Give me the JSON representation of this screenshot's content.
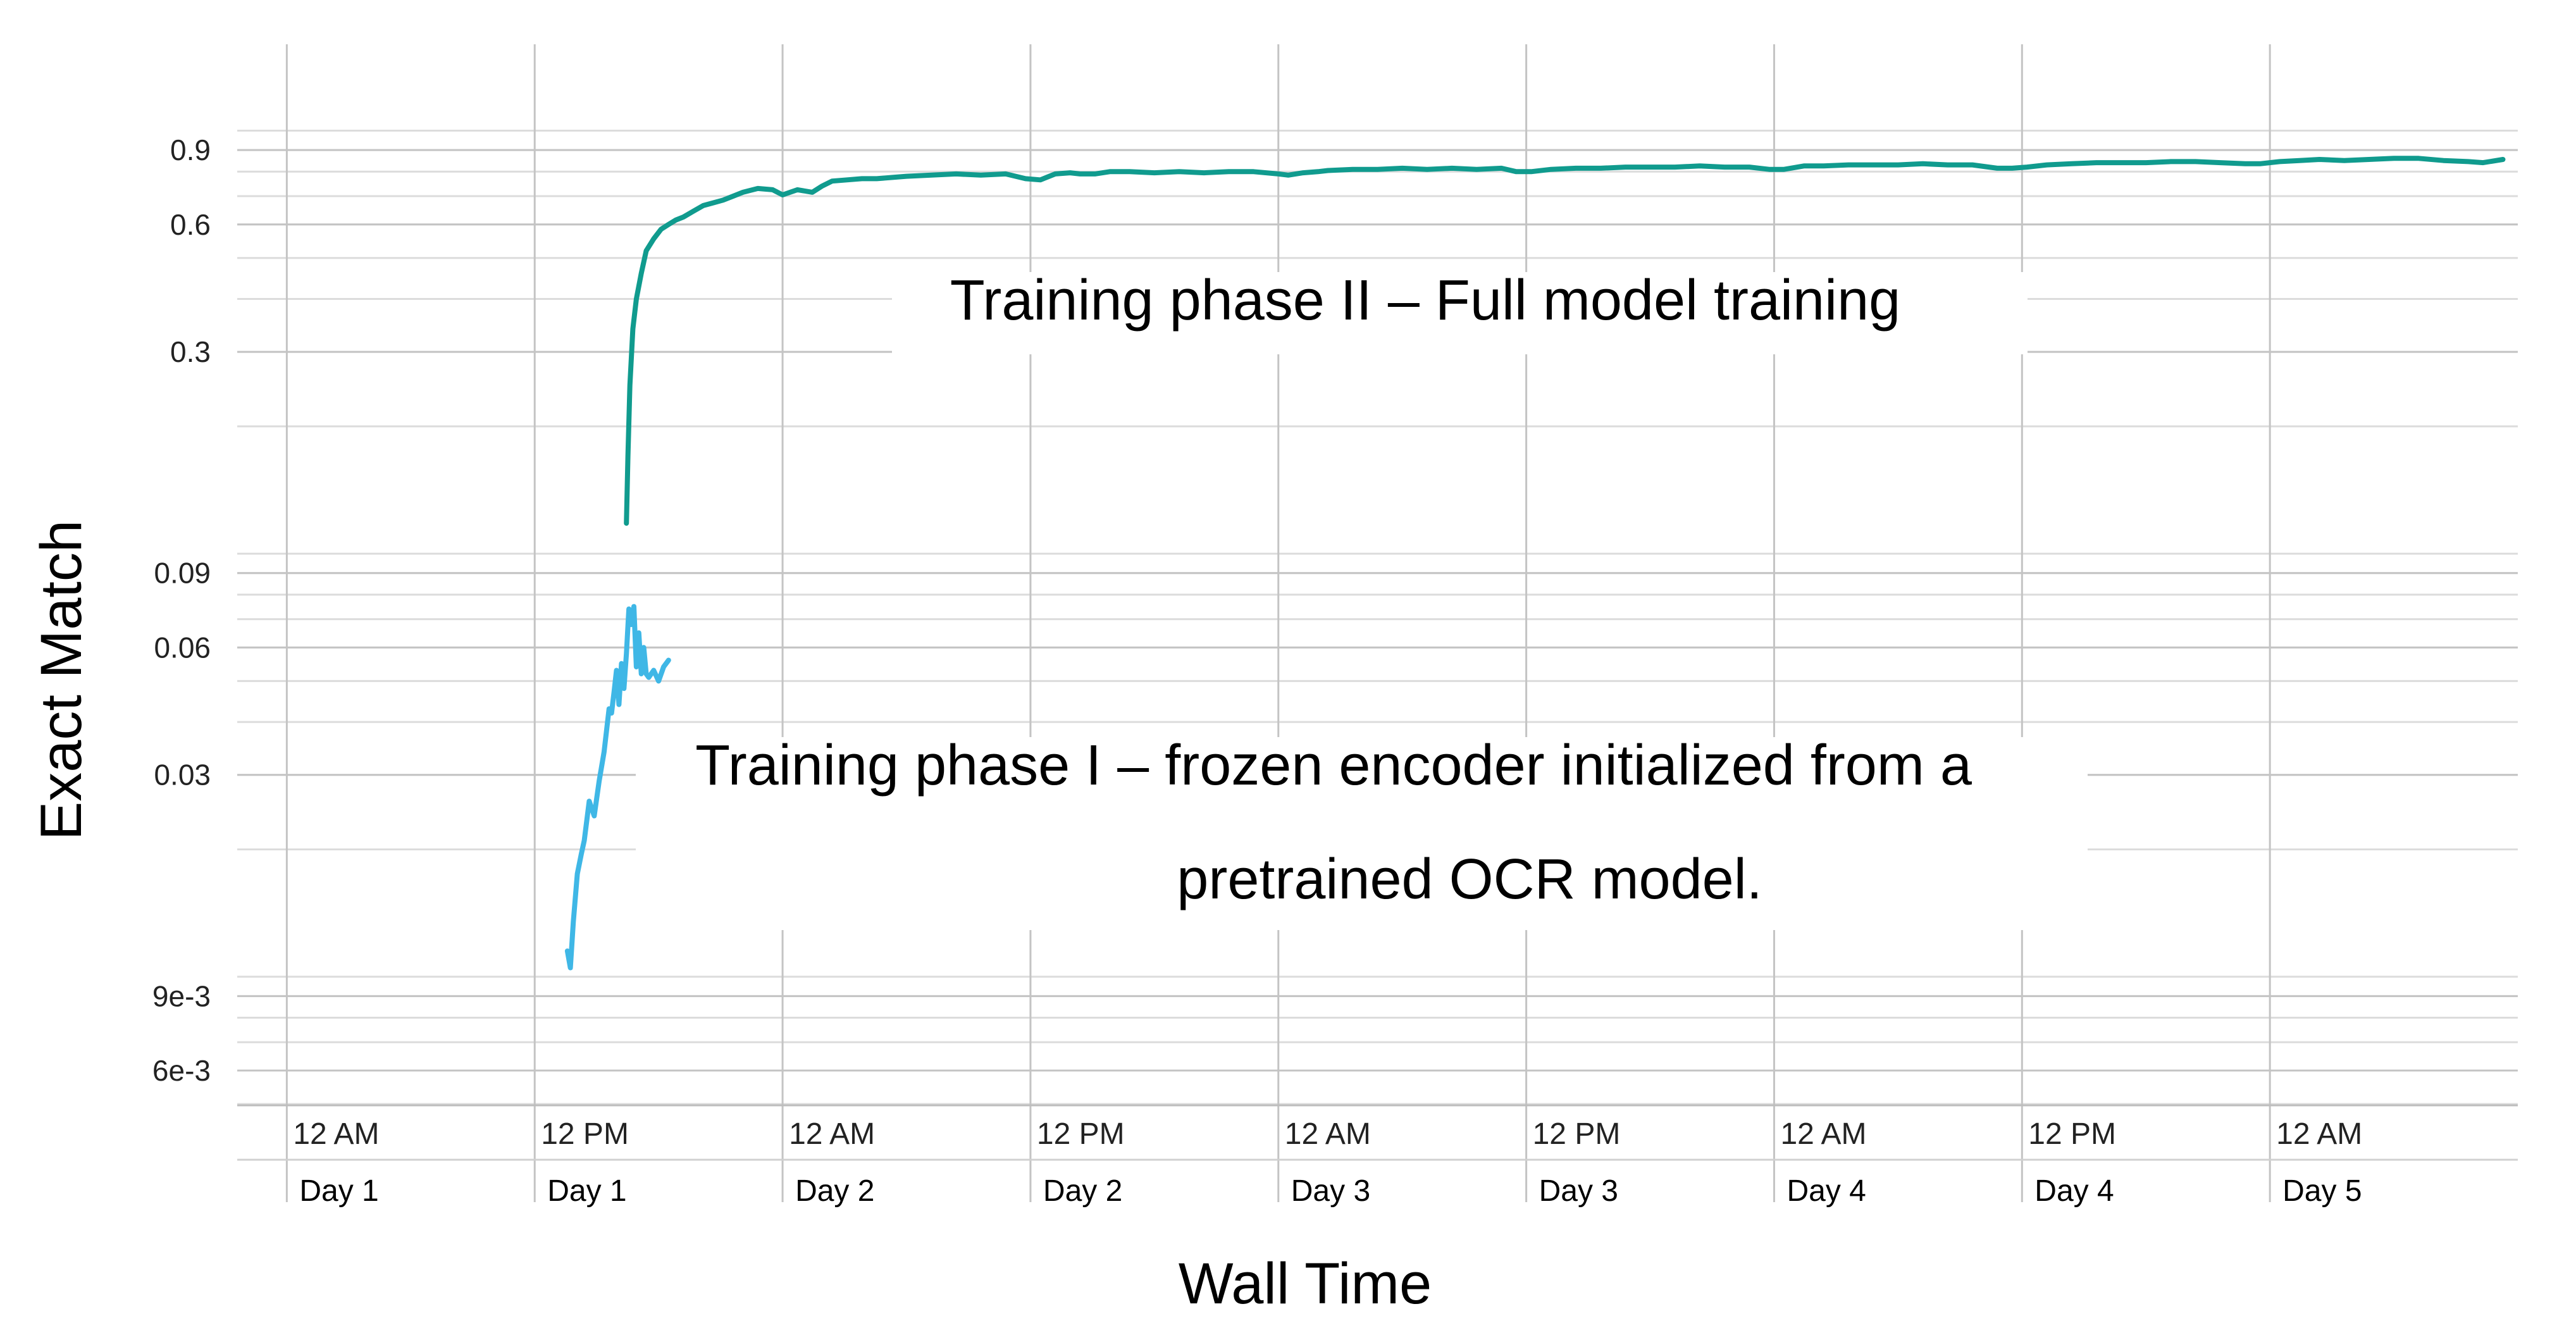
{
  "chart_data": {
    "type": "line",
    "title": "",
    "xlabel": "Wall Time",
    "ylabel": "Exact Match",
    "yscale": "log",
    "ylim": [
      0.005,
      1.6
    ],
    "xlim": [
      -0.1,
      4.5
    ],
    "grid": true,
    "y_ticks": [
      {
        "value": 0.006,
        "label": "6e-3"
      },
      {
        "value": 0.009,
        "label": "9e-3"
      },
      {
        "value": 0.03,
        "label": "0.03"
      },
      {
        "value": 0.06,
        "label": "0.06"
      },
      {
        "value": 0.09,
        "label": "0.09"
      },
      {
        "value": 0.3,
        "label": "0.3"
      },
      {
        "value": 0.6,
        "label": "0.6"
      },
      {
        "value": 0.9,
        "label": "0.9"
      }
    ],
    "x_ticks": [
      {
        "value": 0.0,
        "time": "12 AM",
        "day": "Day 1"
      },
      {
        "value": 0.5,
        "time": "12 PM",
        "day": "Day 1"
      },
      {
        "value": 1.0,
        "time": "12 AM",
        "day": "Day 2"
      },
      {
        "value": 1.5,
        "time": "12 PM",
        "day": "Day 2"
      },
      {
        "value": 2.0,
        "time": "12 AM",
        "day": "Day 3"
      },
      {
        "value": 2.5,
        "time": "12 PM",
        "day": "Day 3"
      },
      {
        "value": 3.0,
        "time": "12 AM",
        "day": "Day 4"
      },
      {
        "value": 3.5,
        "time": "12 PM",
        "day": "Day 4"
      },
      {
        "value": 4.0,
        "time": "12 AM",
        "day": "Day 5"
      }
    ],
    "annotations": [
      {
        "text": "Training phase II – Full model training",
        "series": "phase2"
      },
      {
        "text": "Training phase I – frozen encoder initialized from a",
        "series": "phase1"
      },
      {
        "text": "pretrained OCR model.",
        "series": "phase1"
      }
    ],
    "series": [
      {
        "name": "Training phase I",
        "color": "#3fb7e6",
        "x": [
          0.566,
          0.572,
          0.578,
          0.586,
          0.594,
          0.6,
          0.61,
          0.62,
          0.63,
          0.64,
          0.65,
          0.655,
          0.66,
          0.665,
          0.67,
          0.675,
          0.68,
          0.685,
          0.69,
          0.695,
          0.7,
          0.705,
          0.71,
          0.715,
          0.72,
          0.725,
          0.73,
          0.74,
          0.75,
          0.76,
          0.77
        ],
        "y": [
          0.0115,
          0.0105,
          0.0135,
          0.0175,
          0.0195,
          0.021,
          0.026,
          0.024,
          0.029,
          0.034,
          0.043,
          0.042,
          0.047,
          0.053,
          0.044,
          0.055,
          0.048,
          0.058,
          0.074,
          0.068,
          0.075,
          0.054,
          0.065,
          0.052,
          0.06,
          0.052,
          0.051,
          0.053,
          0.05,
          0.054,
          0.056
        ]
      },
      {
        "name": "Training phase II",
        "color": "#109b8e",
        "x": [
          0.685,
          0.688,
          0.692,
          0.698,
          0.705,
          0.715,
          0.725,
          0.74,
          0.755,
          0.77,
          0.785,
          0.8,
          0.82,
          0.84,
          0.86,
          0.88,
          0.9,
          0.92,
          0.95,
          0.98,
          1.0,
          1.03,
          1.06,
          1.08,
          1.1,
          1.13,
          1.16,
          1.19,
          1.22,
          1.25,
          1.3,
          1.35,
          1.4,
          1.45,
          1.49,
          1.52,
          1.55,
          1.58,
          1.6,
          1.63,
          1.66,
          1.7,
          1.75,
          1.8,
          1.85,
          1.9,
          1.95,
          2.0,
          2.02,
          2.05,
          2.08,
          2.1,
          2.15,
          2.2,
          2.25,
          2.3,
          2.35,
          2.4,
          2.45,
          2.48,
          2.51,
          2.55,
          2.6,
          2.65,
          2.7,
          2.75,
          2.8,
          2.85,
          2.9,
          2.95,
          2.99,
          3.02,
          3.06,
          3.1,
          3.15,
          3.2,
          3.25,
          3.3,
          3.35,
          3.4,
          3.45,
          3.48,
          3.51,
          3.55,
          3.6,
          3.65,
          3.7,
          3.75,
          3.8,
          3.85,
          3.9,
          3.95,
          3.98,
          4.02,
          4.06,
          4.1,
          4.15,
          4.2,
          4.25,
          4.3,
          4.35,
          4.4,
          4.43,
          4.47
        ],
        "y": [
          0.118,
          0.17,
          0.25,
          0.34,
          0.4,
          0.46,
          0.52,
          0.555,
          0.585,
          0.6,
          0.615,
          0.625,
          0.645,
          0.665,
          0.675,
          0.685,
          0.7,
          0.715,
          0.73,
          0.725,
          0.705,
          0.725,
          0.715,
          0.74,
          0.76,
          0.765,
          0.77,
          0.77,
          0.775,
          0.78,
          0.785,
          0.79,
          0.785,
          0.79,
          0.77,
          0.765,
          0.79,
          0.795,
          0.79,
          0.79,
          0.8,
          0.8,
          0.795,
          0.8,
          0.795,
          0.8,
          0.8,
          0.79,
          0.785,
          0.795,
          0.8,
          0.805,
          0.81,
          0.81,
          0.815,
          0.81,
          0.815,
          0.81,
          0.815,
          0.8,
          0.8,
          0.81,
          0.815,
          0.815,
          0.82,
          0.82,
          0.82,
          0.825,
          0.82,
          0.82,
          0.81,
          0.81,
          0.825,
          0.825,
          0.83,
          0.83,
          0.83,
          0.835,
          0.83,
          0.83,
          0.815,
          0.815,
          0.82,
          0.83,
          0.835,
          0.84,
          0.84,
          0.84,
          0.845,
          0.845,
          0.84,
          0.835,
          0.835,
          0.845,
          0.85,
          0.855,
          0.85,
          0.855,
          0.86,
          0.86,
          0.85,
          0.845,
          0.84,
          0.855
        ]
      }
    ]
  }
}
